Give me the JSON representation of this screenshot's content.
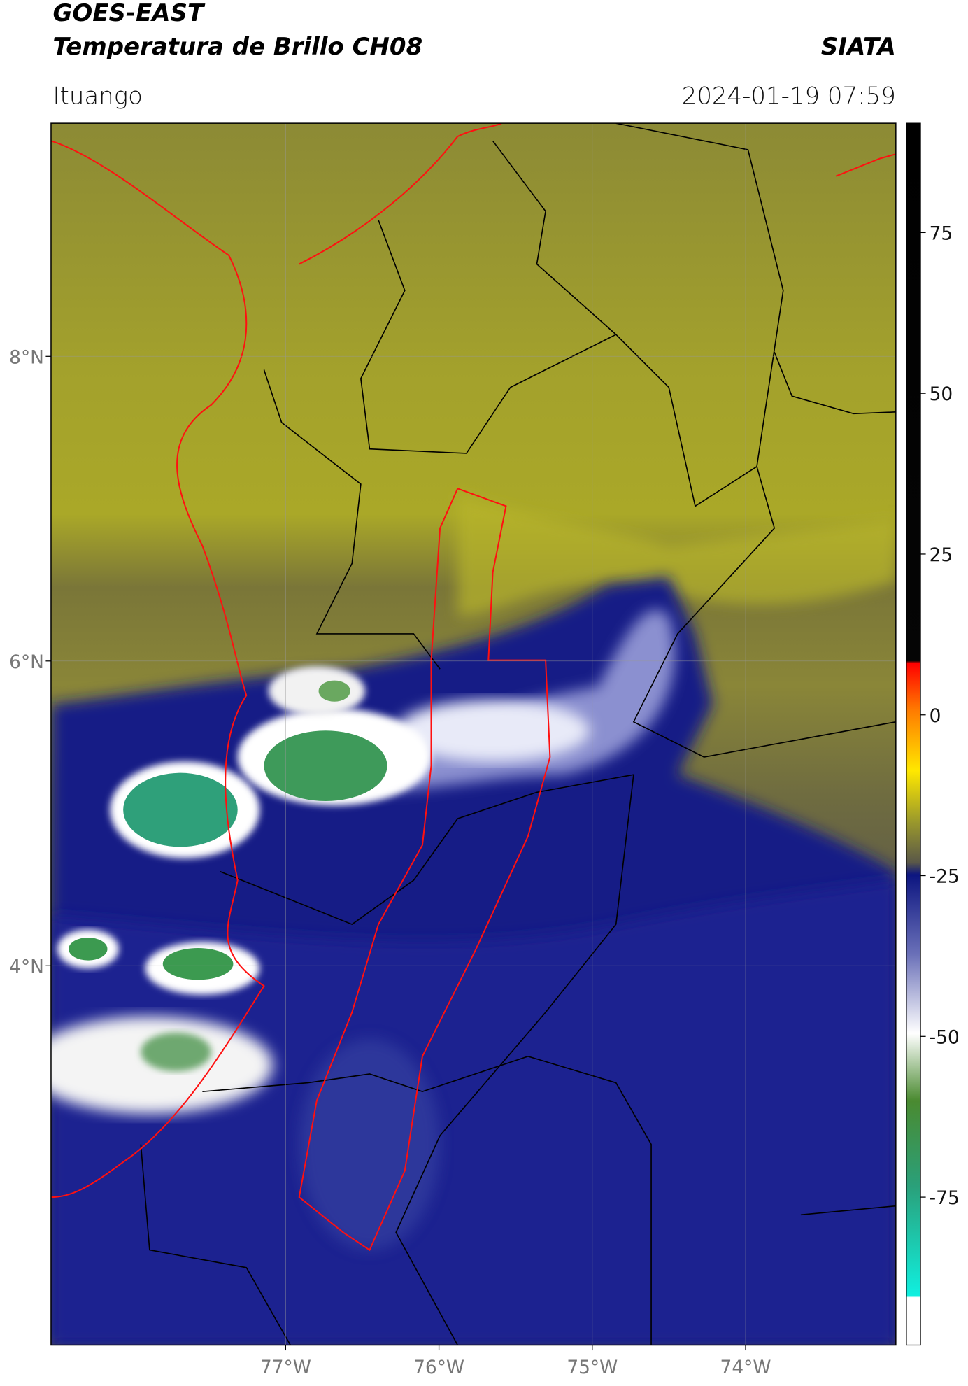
{
  "header": {
    "title": "GOES-EAST",
    "subtitle": "Temperatura de Brillo CH08",
    "source": "SIATA",
    "location": "Ituango",
    "datetime": "2024-01-19 07:59"
  },
  "map": {
    "xlim": [
      -78.53,
      -73.02
    ],
    "ylim": [
      1.51,
      9.53
    ],
    "xticks": [
      {
        "value": -77,
        "label": "77°W"
      },
      {
        "value": -76,
        "label": "76°W"
      },
      {
        "value": -75,
        "label": "75°W"
      },
      {
        "value": -74,
        "label": "74°W"
      }
    ],
    "yticks": [
      {
        "value": 8,
        "label": "8°N"
      },
      {
        "value": 6,
        "label": "6°N"
      },
      {
        "value": 4,
        "label": "4°N"
      }
    ],
    "grid": true
  },
  "colorbar": {
    "lim": [
      -98,
      92
    ],
    "ticks": [
      75,
      50,
      25,
      0,
      -25,
      -50,
      -75
    ]
  }
}
